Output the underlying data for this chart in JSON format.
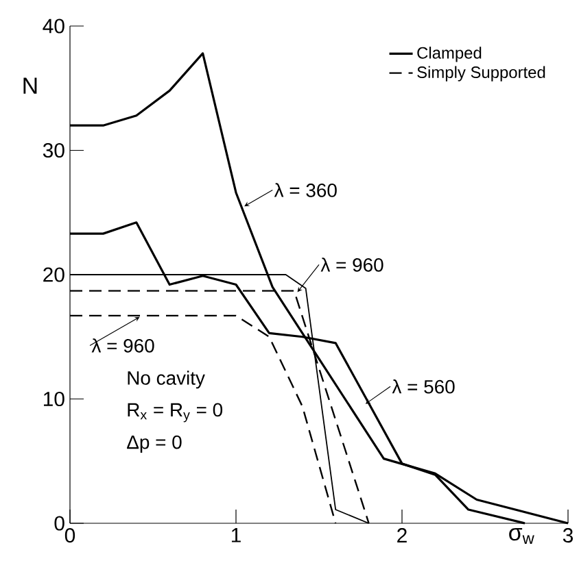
{
  "chart_data": {
    "type": "line",
    "xlabel": "σ$_{w}$",
    "ylabel": "N",
    "xlim": [
      0,
      3
    ],
    "ylim": [
      0,
      40
    ],
    "xticks": [
      0,
      1,
      2,
      3
    ],
    "yticks": [
      0,
      10,
      20,
      30,
      40
    ],
    "grid": false,
    "legend": "top right",
    "marker": "none",
    "line_style": "solid",
    "series": [
      {
        "name": "Clamped",
        "color": "#000000",
        "x": [
          0,
          0.2,
          0.4,
          0.6,
          0.8,
          1.0,
          1.22,
          1.89,
          2.2,
          2.45,
          3.0
        ],
        "values": [
          32,
          32,
          32.8,
          34.8,
          37.8,
          26.6,
          19,
          5.2,
          4,
          1.9,
          0
        ]
      },
      {
        "color": "#000000",
        "x": [
          0,
          0.2,
          0.4,
          0.6,
          0.8,
          1.0,
          1.2,
          1.4,
          1.6,
          2.0,
          2.2,
          2.4,
          2.74
        ],
        "values": [
          23.3,
          23.3,
          24.2,
          19.2,
          19.9,
          19.2,
          15.3,
          15,
          14.5,
          4.8,
          3.9,
          1.1,
          0
        ]
      },
      {
        "color": "#000000",
        "x": [
          0,
          1.3,
          1.42,
          1.6,
          1.8
        ],
        "values": [
          20,
          20,
          18.9,
          1.1,
          0
        ]
      },
      {
        "name": "Simply Supported",
        "color": "#000000",
        "line_style": "dashed",
        "x": [
          0,
          1.35,
          1.8
        ],
        "values": [
          18.7,
          18.7,
          0
        ]
      },
      {
        "color": "#000000",
        "line_style": "dashed",
        "x": [
          0,
          1.0,
          1.2,
          1.4,
          1.6
        ],
        "values": [
          16.7,
          16.7,
          15,
          9.4,
          0
        ]
      }
    ],
    "annotations": [
      {
        "text": "λ = 360",
        "x": 1.05,
        "y": 25.5
      },
      {
        "text": "λ = 960",
        "x": 1.37,
        "y": 18.6
      },
      {
        "text": "λ = 960",
        "x": 0.42,
        "y": 16.6
      },
      {
        "text": "λ = 560",
        "x": 1.78,
        "y": 9.6
      },
      "No cavity",
      "R$_{x}$ = R$_{y}$ = 0",
      "Δp = 0"
    ]
  }
}
